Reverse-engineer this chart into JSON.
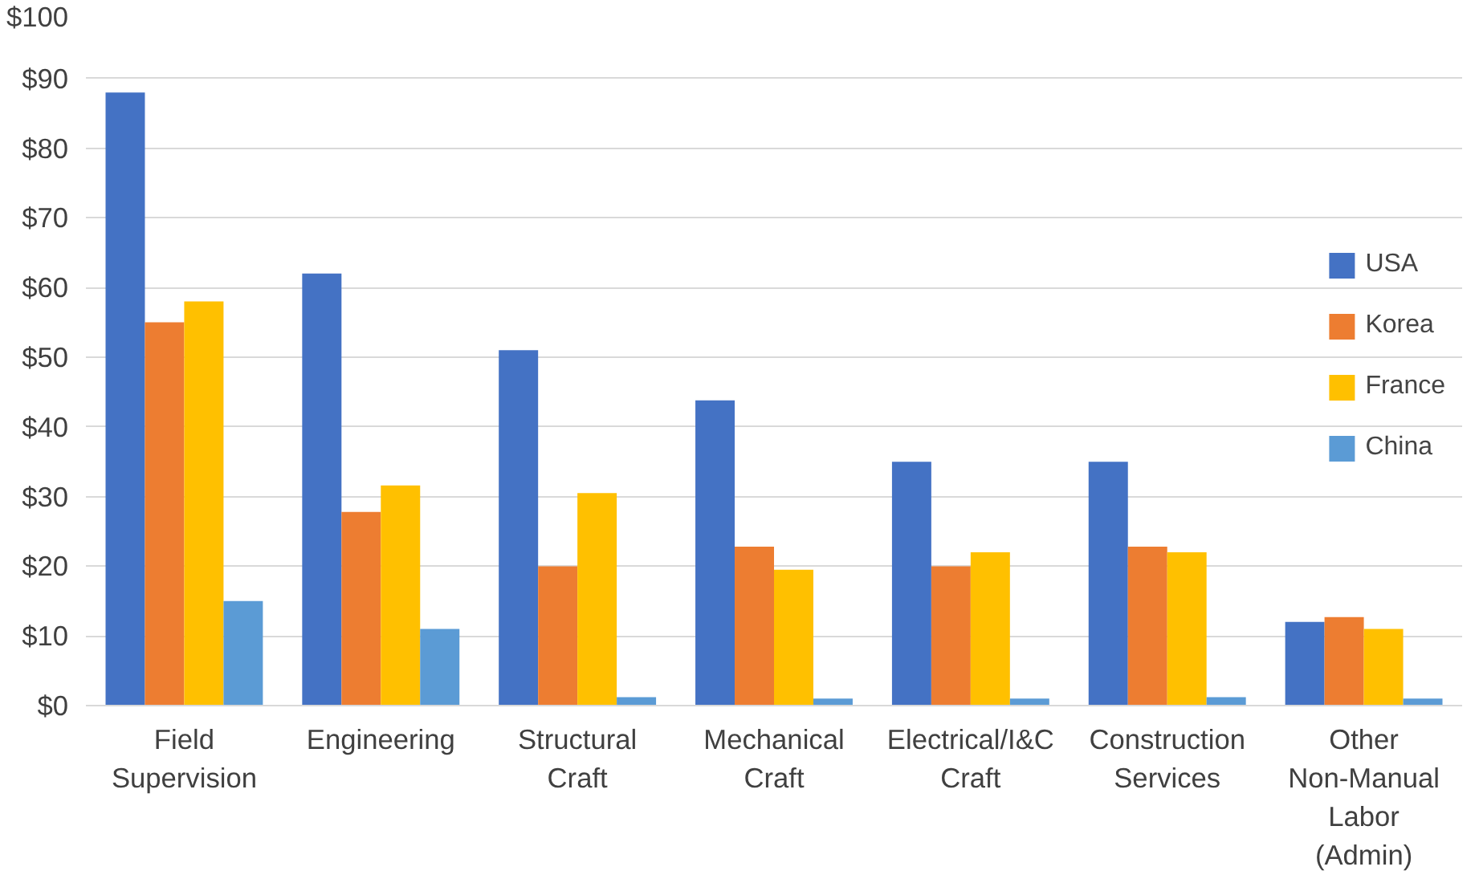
{
  "chart_data": {
    "type": "bar",
    "categories": [
      "Field Supervision",
      "Engineering",
      "Structural Craft",
      "Mechanical Craft",
      "Electrical/I&C Craft",
      "Construction Services",
      "Other Non-Manual Labor (Admin)"
    ],
    "series": [
      {
        "name": "USA",
        "color": "#4472c4",
        "values": [
          88,
          62,
          51,
          43.8,
          35,
          35,
          12
        ]
      },
      {
        "name": "Korea",
        "color": "#ed7d31",
        "values": [
          55,
          27.8,
          20,
          22.8,
          20,
          22.8,
          12.7
        ]
      },
      {
        "name": "France",
        "color": "#ffc000",
        "values": [
          58,
          31.6,
          30.5,
          19.5,
          22,
          22,
          11
        ]
      },
      {
        "name": "China",
        "color": "#5b9bd5",
        "values": [
          15,
          11,
          1.2,
          1,
          1,
          1.2,
          1
        ]
      }
    ],
    "ylim": [
      0,
      100
    ],
    "yticks": [
      {
        "value": 0,
        "label": "$0"
      },
      {
        "value": 10,
        "label": "$10"
      },
      {
        "value": 20,
        "label": "$20"
      },
      {
        "value": 30,
        "label": "$30"
      },
      {
        "value": 40,
        "label": "$40"
      },
      {
        "value": 50,
        "label": "$50"
      },
      {
        "value": 60,
        "label": "$60"
      },
      {
        "value": 70,
        "label": "$70"
      },
      {
        "value": 80,
        "label": "$80"
      },
      {
        "value": 90,
        "label": "$90"
      },
      {
        "value": 100,
        "label": "$100"
      }
    ],
    "grid": "y",
    "legend": "right"
  }
}
